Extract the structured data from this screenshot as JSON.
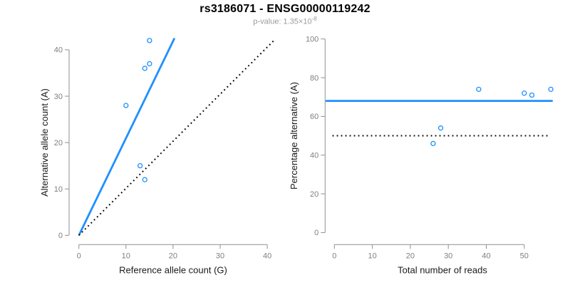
{
  "header": {
    "title": "rs3186071 - ENSG00000119242",
    "p_value_text": "p-value: 1.35×10",
    "p_value_exponent": "-8"
  },
  "colors": {
    "accent": "#1e90ff",
    "axis": "#8f8f8f",
    "tick_label": "#7f7f7f",
    "axis_title": "#1a1a1a",
    "dotted": "#000000",
    "background": "#ffffff"
  },
  "chart_data": [
    {
      "type": "scatter",
      "name": "allele-counts",
      "xlabel": "Reference allele count (G)",
      "ylabel": "Alternative allele count (A)",
      "xlim": [
        0,
        40
      ],
      "ylim": [
        0,
        40
      ],
      "xticks": [
        0,
        10,
        20,
        30,
        40
      ],
      "yticks": [
        0,
        10,
        20,
        30,
        40
      ],
      "grid": false,
      "legend": null,
      "points": [
        [
          10,
          28
        ],
        [
          13,
          15
        ],
        [
          14,
          12
        ],
        [
          14,
          36
        ],
        [
          15,
          37
        ],
        [
          15,
          42
        ]
      ],
      "lines": [
        {
          "name": "fit",
          "style": "solid",
          "color": "#1e90ff",
          "from": [
            0,
            0
          ],
          "to": [
            20.3,
            42.5
          ]
        },
        {
          "name": "identity",
          "style": "dotted",
          "color": "#000000",
          "from": [
            0,
            0
          ],
          "to": [
            41.7,
            42.3
          ]
        }
      ]
    },
    {
      "type": "scatter",
      "name": "percentage-vs-reads",
      "xlabel": "Total number of reads",
      "ylabel": "Percentage alternative (A)",
      "xlim": [
        0,
        57.5
      ],
      "ylim": [
        0,
        100
      ],
      "xticks": [
        0,
        10,
        20,
        30,
        40,
        50
      ],
      "yticks": [
        0,
        20,
        40,
        60,
        80,
        100
      ],
      "grid": false,
      "legend": null,
      "points": [
        [
          26,
          46
        ],
        [
          28,
          54
        ],
        [
          38,
          74
        ],
        [
          50,
          72
        ],
        [
          52,
          71
        ],
        [
          57,
          74
        ]
      ],
      "lines": [
        {
          "name": "fit-percentage",
          "style": "solid",
          "color": "#1e90ff",
          "from": [
            -2.3,
            68
          ],
          "to": [
            57.5,
            68
          ]
        },
        {
          "name": "expected-50",
          "style": "dotted",
          "color": "#000000",
          "from": [
            -0.5,
            50
          ],
          "to": [
            56.8,
            50
          ]
        }
      ]
    }
  ]
}
